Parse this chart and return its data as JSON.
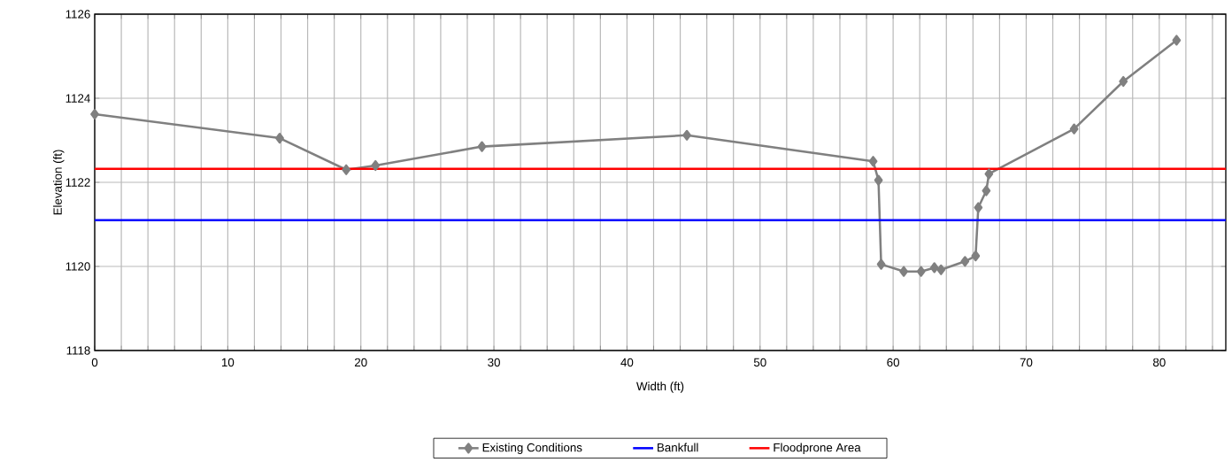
{
  "chart_data": {
    "type": "line",
    "xlabel": "Width (ft)",
    "ylabel": "Elevation (ft)",
    "xlim": [
      0,
      85
    ],
    "ylim": [
      1118,
      1126
    ],
    "xticks": [
      0,
      {
        "value": 2,
        "label": null
      },
      {
        "value": 4,
        "label": null
      },
      {
        "value": 6,
        "label": null
      },
      {
        "value": 8,
        "label": null
      },
      10,
      {
        "value": 12,
        "label": null
      },
      {
        "value": 14,
        "label": null
      },
      {
        "value": 16,
        "label": null
      },
      {
        "value": 18,
        "label": null
      },
      20,
      {
        "value": 22,
        "label": null
      },
      {
        "value": 24,
        "label": null
      },
      {
        "value": 26,
        "label": null
      },
      {
        "value": 28,
        "label": null
      },
      30,
      {
        "value": 32,
        "label": null
      },
      {
        "value": 34,
        "label": null
      },
      {
        "value": 36,
        "label": null
      },
      {
        "value": 38,
        "label": null
      },
      40,
      {
        "value": 42,
        "label": null
      },
      {
        "value": 44,
        "label": null
      },
      {
        "value": 46,
        "label": null
      },
      {
        "value": 48,
        "label": null
      },
      50,
      {
        "value": 52,
        "label": null
      },
      {
        "value": 54,
        "label": null
      },
      {
        "value": 56,
        "label": null
      },
      {
        "value": 58,
        "label": null
      },
      60,
      {
        "value": 62,
        "label": null
      },
      {
        "value": 64,
        "label": null
      },
      {
        "value": 66,
        "label": null
      },
      {
        "value": 68,
        "label": null
      },
      70,
      {
        "value": 72,
        "label": null
      },
      {
        "value": 74,
        "label": null
      },
      {
        "value": 76,
        "label": null
      },
      {
        "value": 78,
        "label": null
      },
      80,
      {
        "value": 82,
        "label": null
      },
      {
        "value": 84,
        "label": null
      }
    ],
    "yticks": [
      1118,
      1120,
      1122,
      1124,
      1126
    ],
    "grid": true,
    "legend": "bottom",
    "series": [
      {
        "name": "Existing Conditions",
        "color": "#808080",
        "marker": "diamond",
        "x": [
          0,
          13.9,
          18.9,
          21.1,
          29.1,
          44.5,
          58.5,
          58.9,
          59.1,
          60.8,
          62.1,
          63.1,
          63.6,
          65.4,
          66.2,
          66.4,
          67.0,
          67.2,
          73.6,
          77.3,
          81.3
        ],
        "values": [
          1123.62,
          1123.05,
          1122.3,
          1122.4,
          1122.85,
          1123.12,
          1122.5,
          1122.05,
          1120.05,
          1119.88,
          1119.88,
          1119.97,
          1119.92,
          1120.12,
          1120.25,
          1121.4,
          1121.8,
          1122.2,
          1123.27,
          1124.4,
          1125.38
        ]
      },
      {
        "name": "Bankfull",
        "color": "#0000ff",
        "marker": "none",
        "x": [
          0,
          85
        ],
        "values": [
          1121.1,
          1121.1
        ]
      },
      {
        "name": "Floodprone Area",
        "color": "#ff0000",
        "marker": "none",
        "x": [
          0,
          85
        ],
        "values": [
          1122.32,
          1122.32
        ]
      }
    ]
  }
}
